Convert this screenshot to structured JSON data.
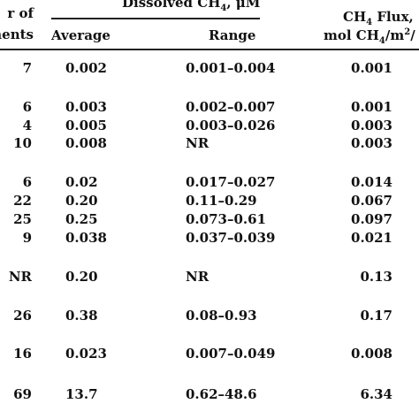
{
  "header": {
    "count_label_line1": "r of",
    "count_label_line2": "ments",
    "dissolved_label_prefix": "Dissolved CH",
    "dissolved_label_sub": "4",
    "dissolved_label_suffix": ", μM",
    "average_label": "Average",
    "range_label": "Range",
    "flux_label_line1_prefix": "CH",
    "flux_label_line1_sub": "4",
    "flux_label_line1_suffix": " Flux,",
    "flux_label_line2_prefix": "mol CH",
    "flux_label_line2_sub": "4",
    "flux_label_line2_mid": "/m",
    "flux_label_line2_sup": "2",
    "flux_label_line2_suffix": "/"
  },
  "rows": [
    {
      "n": "7",
      "average": "0.002",
      "range": "0.001–0.004",
      "flux": "0.001"
    },
    {
      "n": "6",
      "average": "0.003",
      "range": "0.002–0.007",
      "flux": "0.001"
    },
    {
      "n": "4",
      "average": "0.005",
      "range": "0.003–0.026",
      "flux": "0.003"
    },
    {
      "n": "10",
      "average": "0.008",
      "range": "NR",
      "flux": "0.003"
    },
    {
      "n": "6",
      "average": "0.02",
      "range": "0.017–0.027",
      "flux": "0.014"
    },
    {
      "n": "22",
      "average": "0.20",
      "range": "0.11–0.29",
      "flux": "0.067"
    },
    {
      "n": "25",
      "average": "0.25",
      "range": "0.073–0.61",
      "flux": "0.097"
    },
    {
      "n": "9",
      "average": "0.038",
      "range": "0.037–0.039",
      "flux": "0.021"
    },
    {
      "n": "NR",
      "average": "0.20",
      "range": "NR",
      "flux": "0.13"
    },
    {
      "n": "26",
      "average": "0.38",
      "range": "0.08–0.93",
      "flux": "0.17"
    },
    {
      "n": "16",
      "average": "0.023",
      "range": "0.007–0.049",
      "flux": "0.008"
    },
    {
      "n": "69",
      "average": "13.7",
      "range": "0.62–48.6",
      "flux": "6.34"
    }
  ]
}
